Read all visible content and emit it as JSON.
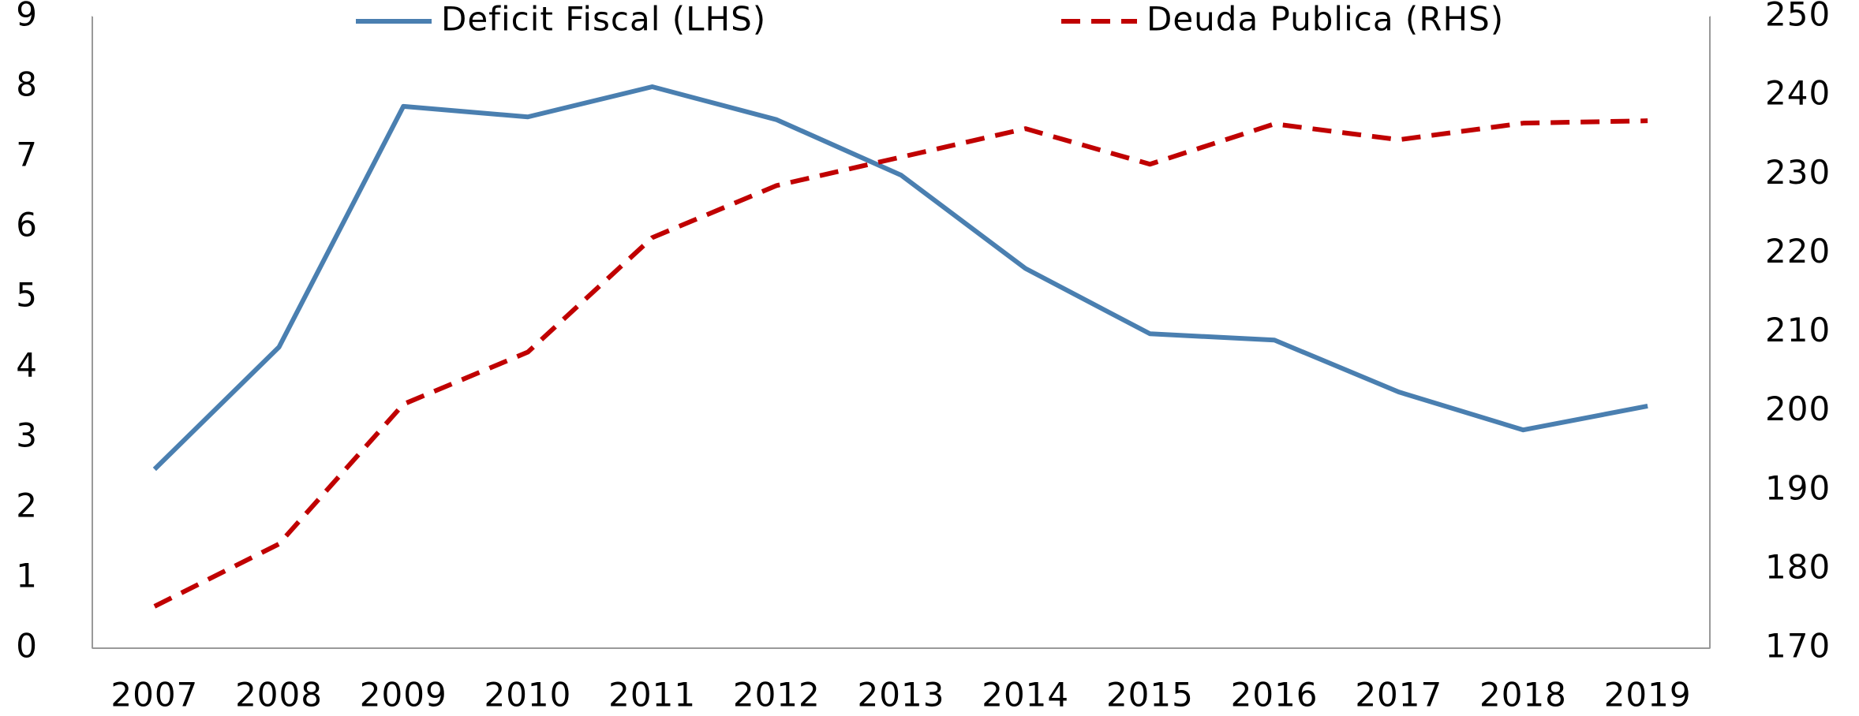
{
  "chart_data": {
    "type": "line",
    "categories": [
      "2007",
      "2008",
      "2009",
      "2010",
      "2011",
      "2012",
      "2013",
      "2014",
      "2015",
      "2016",
      "2017",
      "2018",
      "2019"
    ],
    "series": [
      {
        "name": "Deficit Fiscal (LHS)",
        "color": "#4a7fb0",
        "dash": false,
        "axis": "y",
        "values": [
          2.55,
          4.29,
          7.72,
          7.57,
          8.0,
          7.53,
          6.74,
          5.41,
          4.48,
          4.39,
          3.65,
          3.11,
          3.45
        ]
      },
      {
        "name": "Deuda Publica (RHS)",
        "color": "#c00000",
        "dash": true,
        "axis": "y2",
        "values": [
          175.3,
          183.2,
          200.9,
          207.5,
          222.0,
          228.6,
          232.2,
          235.8,
          231.3,
          236.4,
          234.4,
          236.5,
          236.8
        ]
      }
    ],
    "ylim": [
      0,
      9
    ],
    "yticks": [
      0,
      1,
      2,
      3,
      4,
      5,
      6,
      7,
      8,
      9
    ],
    "y2lim": [
      170,
      250
    ],
    "y2ticks": [
      170,
      180,
      190,
      200,
      210,
      220,
      230,
      240,
      250
    ],
    "grid": false,
    "legend": "top"
  }
}
